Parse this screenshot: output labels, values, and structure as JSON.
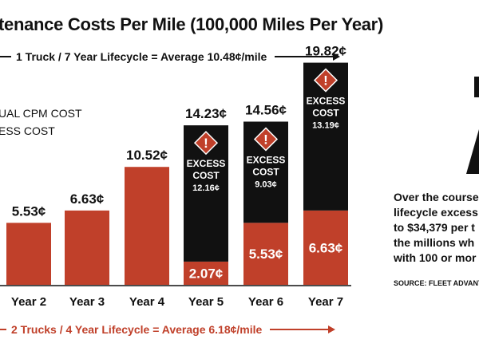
{
  "chart_data": {
    "type": "bar",
    "title": "tenance Costs Per Mile (100,000 Miles Per Year)",
    "categories": [
      "Year 2",
      "Year 3",
      "Year 4",
      "Year 5",
      "Year 6",
      "Year 7"
    ],
    "series": [
      {
        "name": "ACTUAL CPM COST",
        "values": [
          5.53,
          6.63,
          10.52,
          2.07,
          5.53,
          6.63
        ]
      },
      {
        "name": "EXCESS COST",
        "values": [
          0,
          0,
          0,
          12.16,
          9.03,
          13.19
        ]
      }
    ],
    "total_labels": [
      "5.53¢",
      "6.63¢",
      "10.52¢",
      "14.23¢",
      "14.56¢",
      "19.82¢"
    ],
    "base_labels": [
      "",
      "",
      "",
      "2.07¢",
      "5.53¢",
      "6.63¢"
    ],
    "excess_labels": [
      "",
      "",
      "",
      "12.16¢",
      "9.03¢",
      "13.19¢"
    ],
    "excess_word_1": "EXCESS",
    "excess_word_2": "COST",
    "ylim": [
      0,
      21
    ],
    "xlabel": "",
    "ylabel": "",
    "colors": {
      "base": "#c0402a",
      "excess": "#111111",
      "warning": "#c0402a"
    }
  },
  "banner_top": "1 Truck / 7 Year Lifecycle = Average 10.48¢/mile",
  "banner_bottom": "2 Trucks / 4 Year Lifecycle = Average 6.18¢/mile",
  "legend": {
    "line1": "UAL CPM COST",
    "line2": "ESS COST"
  },
  "side_text": {
    "line1": "Over the course",
    "line2": "lifecycle excess",
    "line3": "to $34,379 per t",
    "line4": "the millions wh",
    "line5": "with 100 or mor"
  },
  "source": "SOURCE: FLEET ADVANTA"
}
